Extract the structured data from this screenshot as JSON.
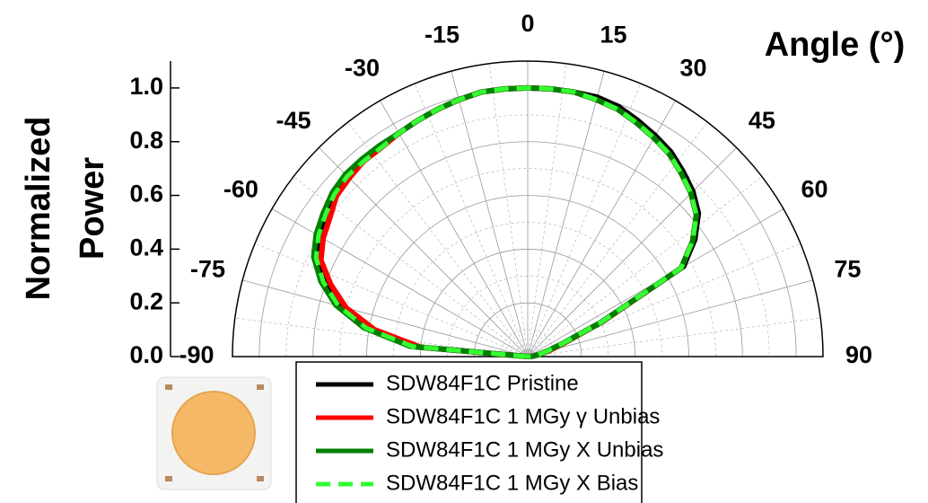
{
  "chart_data": {
    "type": "polar",
    "title": "Angle (°)",
    "ylabel": "Normalized Power",
    "theta": [
      -90,
      -85,
      -80,
      -75,
      -70,
      -65,
      -60,
      -55,
      -50,
      -45,
      -40,
      -35,
      -30,
      -25,
      -20,
      -15,
      -10,
      -5,
      0,
      5,
      10,
      15,
      20,
      25,
      30,
      35,
      40,
      45,
      50,
      55,
      60,
      65,
      70,
      75,
      80,
      85,
      90
    ],
    "thetaticks": [
      -90,
      -75,
      -60,
      -45,
      -30,
      -15,
      0,
      15,
      30,
      45,
      60,
      75,
      90
    ],
    "rlim": [
      0,
      1.1
    ],
    "rticks": [
      {
        "value": 0,
        "label": "0.0"
      },
      {
        "value": 0.2,
        "label": "0.2"
      },
      {
        "value": 0.4,
        "label": "0.4"
      },
      {
        "value": 0.6,
        "label": "0.6"
      },
      {
        "value": 0.8,
        "label": "0.8"
      },
      {
        "value": 1.0,
        "label": "1.0"
      }
    ],
    "grid": true,
    "series": [
      {
        "name": "SDW84F1C Pristine",
        "color": "#000000",
        "style": "solid",
        "values": [
          0,
          0.42,
          0.6,
          0.72,
          0.8,
          0.87,
          0.9,
          0.92,
          0.94,
          0.95,
          0.95,
          0.95,
          0.96,
          0.97,
          0.98,
          0.99,
          1.0,
          1.0,
          1.0,
          1.0,
          1.0,
          1.0,
          0.99,
          0.97,
          0.95,
          0.93,
          0.9,
          0.87,
          0.83,
          0.76,
          0.67,
          0.3,
          0.13,
          0.07,
          0.04,
          0.02,
          0
        ]
      },
      {
        "name": "SDW84F1C 1 MGy γ Unbias",
        "color": "#ff0000",
        "style": "solid",
        "values": [
          0,
          0.4,
          0.58,
          0.7,
          0.78,
          0.85,
          0.88,
          0.9,
          0.93,
          0.94,
          0.95,
          0.95,
          0.96,
          0.97,
          0.98,
          0.99,
          1.0,
          1.0,
          1.0,
          1.0,
          1.0,
          0.99,
          0.98,
          0.96,
          0.94,
          0.92,
          0.89,
          0.86,
          0.82,
          0.75,
          0.66,
          0.31,
          0.14,
          0.08,
          0.04,
          0.02,
          0
        ]
      },
      {
        "name": "SDW84F1C 1 MGy X Unbias",
        "color": "#008000",
        "style": "solid",
        "values": [
          0,
          0.44,
          0.62,
          0.74,
          0.82,
          0.88,
          0.91,
          0.93,
          0.95,
          0.96,
          0.96,
          0.96,
          0.96,
          0.97,
          0.98,
          0.99,
          1.0,
          1.0,
          1.0,
          1.0,
          1.0,
          0.99,
          0.98,
          0.96,
          0.94,
          0.92,
          0.89,
          0.86,
          0.82,
          0.75,
          0.66,
          0.3,
          0.13,
          0.07,
          0.04,
          0.02,
          0
        ]
      },
      {
        "name": "SDW84F1C 1 MGy X Bias",
        "color": "#33ff33",
        "style": "dashed",
        "values": [
          0,
          0.43,
          0.61,
          0.73,
          0.81,
          0.87,
          0.9,
          0.92,
          0.94,
          0.95,
          0.95,
          0.95,
          0.96,
          0.97,
          0.98,
          0.99,
          1.0,
          1.0,
          1.0,
          1.0,
          1.0,
          0.99,
          0.98,
          0.96,
          0.94,
          0.92,
          0.89,
          0.86,
          0.82,
          0.75,
          0.66,
          0.3,
          0.13,
          0.07,
          0.04,
          0.02,
          0
        ]
      }
    ]
  }
}
